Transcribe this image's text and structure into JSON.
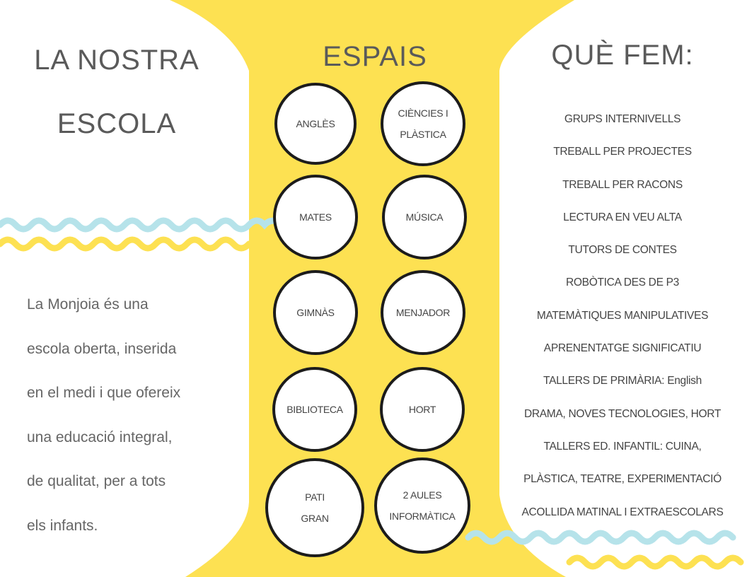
{
  "colors": {
    "yellow": "#fde152",
    "wave_blue": "#b6e3ea",
    "wave_yellow": "#fde152",
    "text": "#555555",
    "circle_border": "#1c1c1c"
  },
  "left": {
    "title_lines": [
      "LA NOSTRA",
      "ESCOLA"
    ],
    "paragraph_lines": [
      "La Monjoia és una",
      "escola oberta, inserida",
      "en el medi i que ofereix",
      "una educació integral,",
      "de qualitat, per a tots",
      "els infants."
    ]
  },
  "center": {
    "title": "ESPAIS",
    "spaces": [
      [
        "ANGLÈS"
      ],
      [
        "CIÈNCIES I",
        "PLÀSTICA"
      ],
      [
        "MATES"
      ],
      [
        "MÚSICA"
      ],
      [
        "GIMNÀS"
      ],
      [
        "MENJADOR"
      ],
      [
        "BIBLIOTECA"
      ],
      [
        "HORT"
      ],
      [
        "PATI",
        "GRAN"
      ],
      [
        "2 AULES",
        "INFORMÀTICA"
      ]
    ]
  },
  "right": {
    "title": "QUÈ FEM:",
    "items": [
      "GRUPS INTERNIVELLS",
      "TREBALL PER PROJECTES",
      "TREBALL PER RACONS",
      "LECTURA EN VEU ALTA",
      "TUTORS DE CONTES",
      "ROBÒTICA DES DE P3",
      "MATEMÀTIQUES MANIPULATIVES",
      "APRENENTATGE SIGNIFICATIU",
      "TALLERS DE PRIMÀRIA: English",
      "DRAMA, NOVES TECNOLOGIES, HORT",
      "TALLERS ED. INFANTIL: CUINA,",
      "PLÀSTICA, TEATRE, EXPERIMENTACIÓ",
      "ACOLLIDA MATINAL I EXTRAESCOLARS"
    ]
  }
}
